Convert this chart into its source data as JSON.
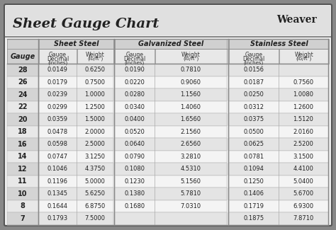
{
  "title": "Sheet Gauge Chart",
  "bg_outer": "#888888",
  "bg_inner": "#f0f0f0",
  "header_bg": "#c8c8c8",
  "row_bg_odd": "#e8e8e8",
  "row_bg_even": "#f8f8f8",
  "col_header_bg": "#d8d8d8",
  "gauges": [
    28,
    26,
    24,
    22,
    20,
    18,
    16,
    14,
    12,
    11,
    10,
    8,
    7
  ],
  "sheet_steel": [
    [
      "0.0149",
      "0.6250"
    ],
    [
      "0.0179",
      "0.7500"
    ],
    [
      "0.0239",
      "1.0000"
    ],
    [
      "0.0299",
      "1.2500"
    ],
    [
      "0.0359",
      "1.5000"
    ],
    [
      "0.0478",
      "2.0000"
    ],
    [
      "0.0598",
      "2.5000"
    ],
    [
      "0.0747",
      "3.1250"
    ],
    [
      "0.1046",
      "4.3750"
    ],
    [
      "0.1196",
      "5.0000"
    ],
    [
      "0.1345",
      "5.6250"
    ],
    [
      "0.1644",
      "6.8750"
    ],
    [
      "0.1793",
      "7.5000"
    ]
  ],
  "galvanized_steel": [
    [
      "0.0190",
      "0.7810"
    ],
    [
      "0.0220",
      "0.9060"
    ],
    [
      "0.0280",
      "1.1560"
    ],
    [
      "0.0340",
      "1.4060"
    ],
    [
      "0.0400",
      "1.6560"
    ],
    [
      "0.0520",
      "2.1560"
    ],
    [
      "0.0640",
      "2.6560"
    ],
    [
      "0.0790",
      "3.2810"
    ],
    [
      "0.1080",
      "4.5310"
    ],
    [
      "0.1230",
      "5.1560"
    ],
    [
      "0.1380",
      "5.7810"
    ],
    [
      "0.1680",
      "7.0310"
    ],
    [
      "",
      ""
    ]
  ],
  "stainless_steel": [
    [
      "0.0156",
      ""
    ],
    [
      "0.0187",
      "0.7560"
    ],
    [
      "0.0250",
      "1.0080"
    ],
    [
      "0.0312",
      "1.2600"
    ],
    [
      "0.0375",
      "1.5120"
    ],
    [
      "0.0500",
      "2.0160"
    ],
    [
      "0.0625",
      "2.5200"
    ],
    [
      "0.0781",
      "3.1500"
    ],
    [
      "0.1094",
      "4.4100"
    ],
    [
      "0.1250",
      "5.0400"
    ],
    [
      "0.1406",
      "5.6700"
    ],
    [
      "0.1719",
      "6.9300"
    ],
    [
      "0.1875",
      "7.8710"
    ]
  ]
}
